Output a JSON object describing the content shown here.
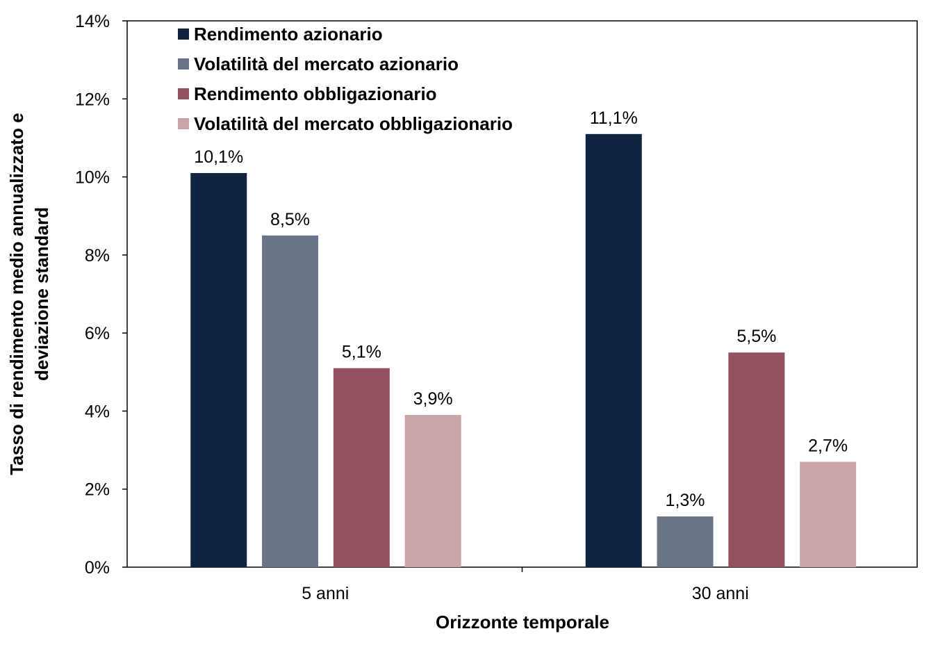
{
  "chart_data": {
    "type": "bar",
    "title": "",
    "xlabel": "Orizzonte temporale",
    "ylabel": [
      "Tasso di rendimento medio annualizzato e",
      "deviazione standard"
    ],
    "ylim": [
      0,
      14
    ],
    "yticks": [
      "0%",
      "2%",
      "4%",
      "6%",
      "8%",
      "10%",
      "12%",
      "14%"
    ],
    "grid": false,
    "legend_position": "top-left",
    "categories": [
      "5 anni",
      "30 anni"
    ],
    "series": [
      {
        "name": "Rendimento azionario",
        "values": [
          10.1,
          11.1
        ],
        "labels": [
          "10,1%",
          "11,1%"
        ],
        "color": "#0f2440"
      },
      {
        "name": "Volatilità del mercato azionario",
        "values": [
          8.5,
          1.3
        ],
        "labels": [
          "8,5%",
          "1,3%"
        ],
        "color": "#6b7388"
      },
      {
        "name": "Rendimento obbligazionario",
        "values": [
          5.1,
          5.5
        ],
        "labels": [
          "5,1%",
          "5,5%"
        ],
        "color": "#93505f"
      },
      {
        "name": "Volatilità del mercato obbligazionario",
        "values": [
          3.9,
          2.7
        ],
        "labels": [
          "3,9%",
          "2,7%"
        ],
        "color": "#c9a5aa"
      }
    ]
  }
}
